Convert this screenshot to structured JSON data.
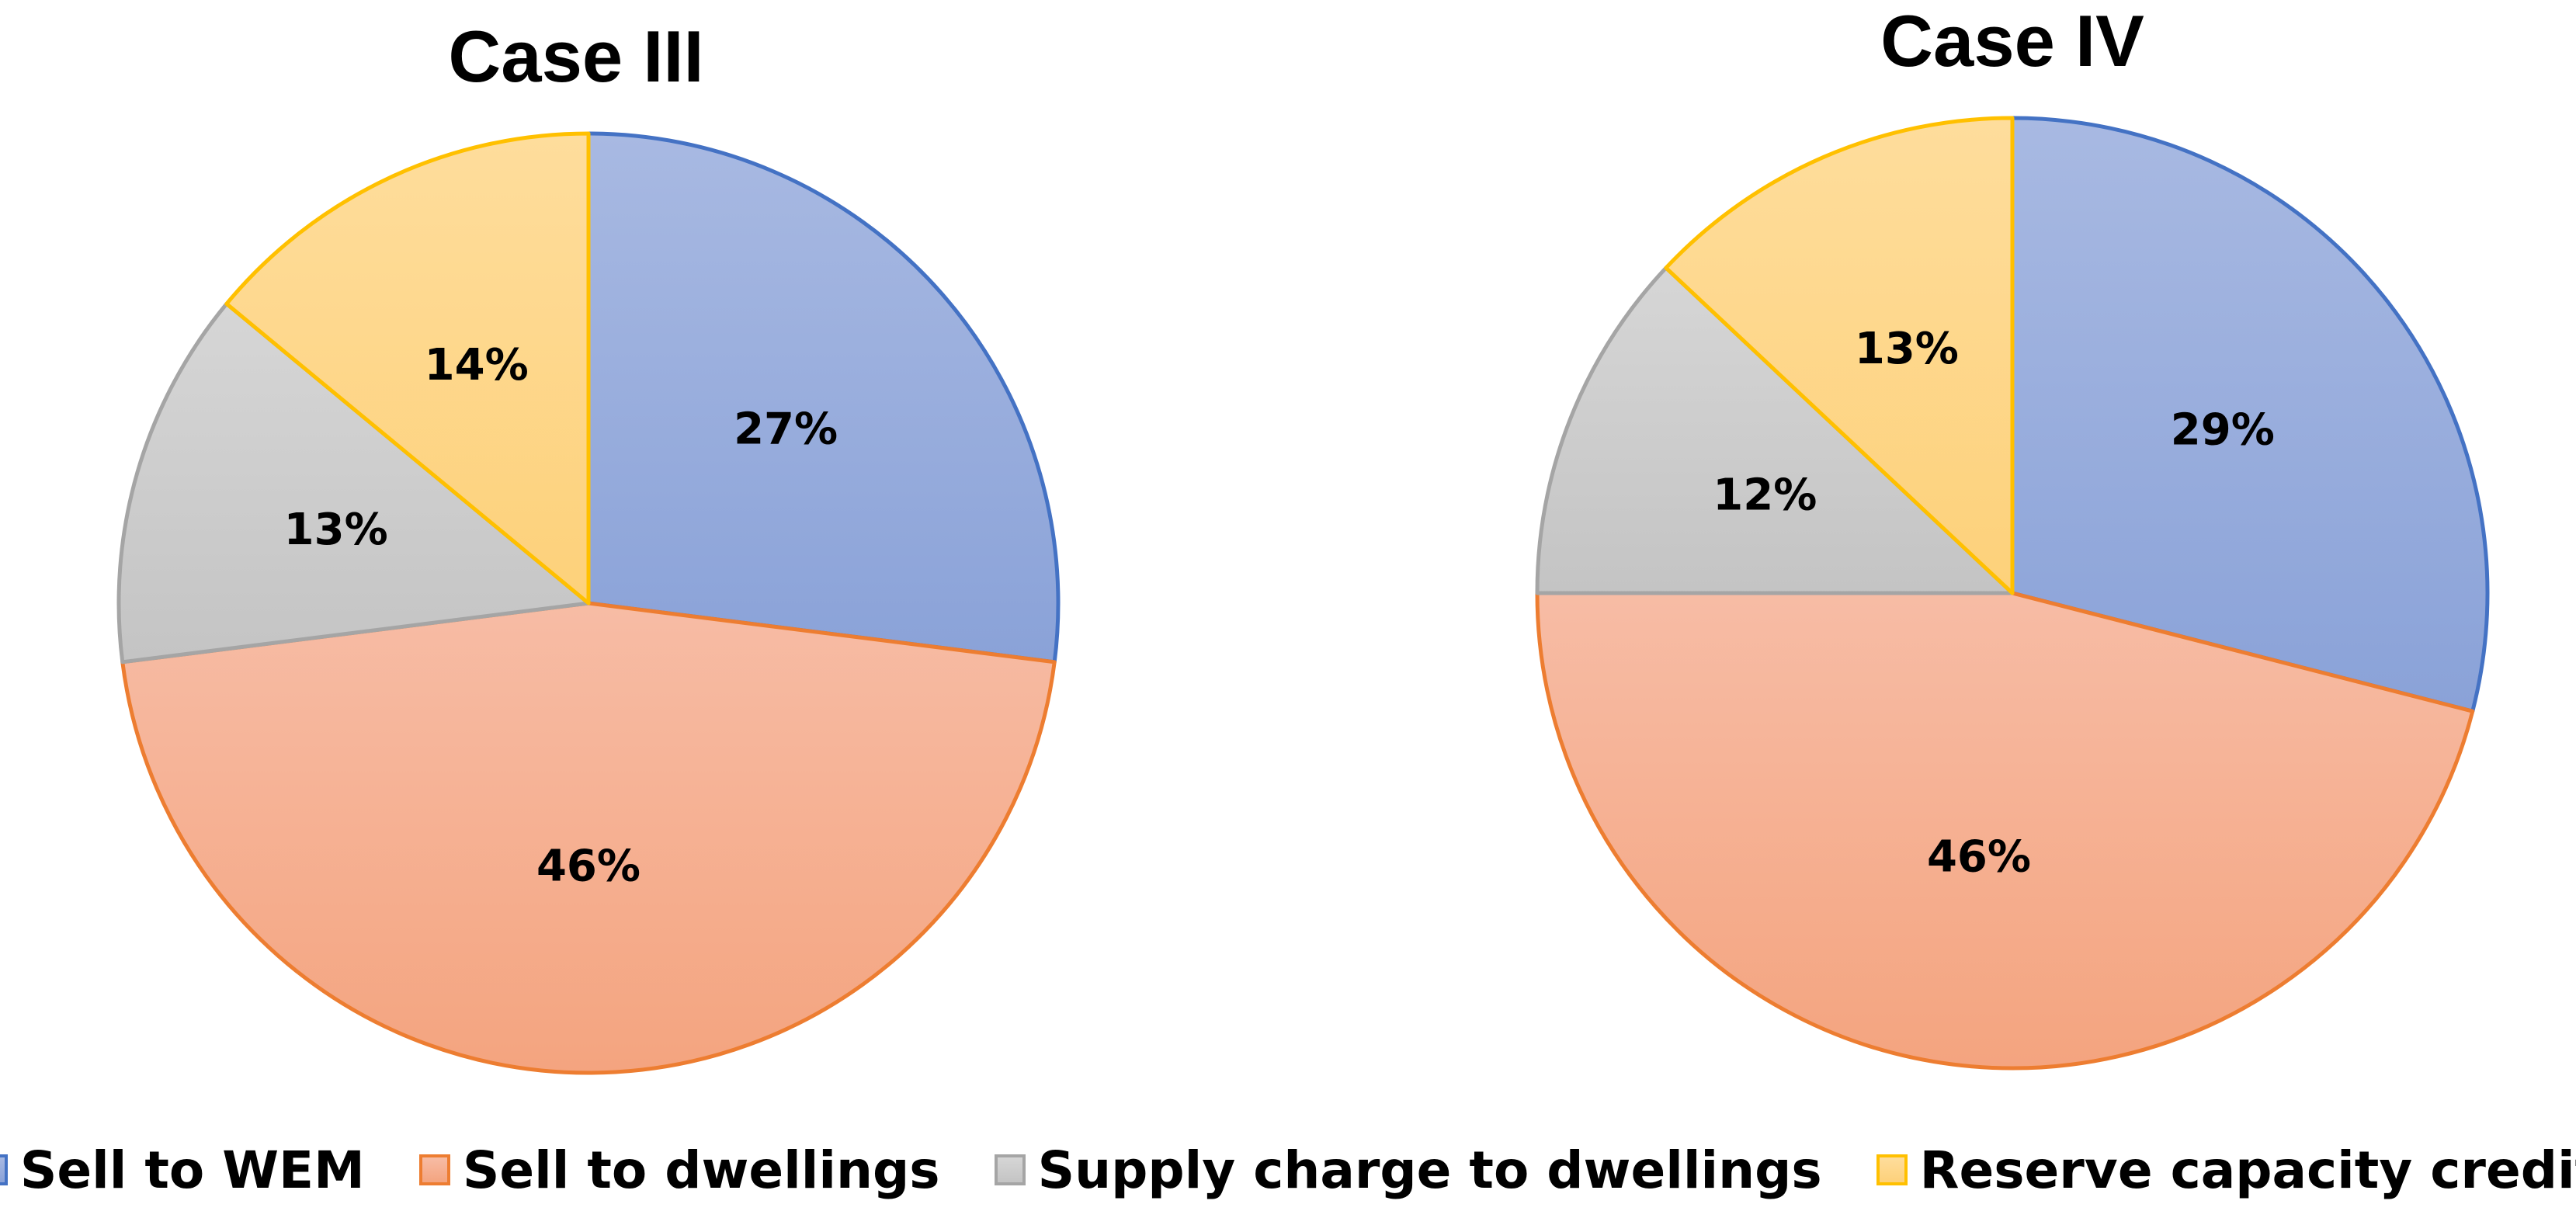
{
  "chart_data": [
    {
      "type": "pie",
      "title": "Case III",
      "start_angle_deg": 0,
      "direction": "clockwise",
      "slices": [
        {
          "category": "Sell to WEM",
          "value": 27,
          "label": "27%"
        },
        {
          "category": "Sell to dwellings",
          "value": 46,
          "label": "46%"
        },
        {
          "category": "Supply charge to dwellings",
          "value": 13,
          "label": "13%"
        },
        {
          "category": "Reserve capacity credit",
          "value": 14,
          "label": "14%"
        }
      ]
    },
    {
      "type": "pie",
      "title": "Case IV",
      "start_angle_deg": 0,
      "direction": "clockwise",
      "slices": [
        {
          "category": "Sell to WEM",
          "value": 29,
          "label": "29%"
        },
        {
          "category": "Sell to dwellings",
          "value": 46,
          "label": "46%"
        },
        {
          "category": "Supply charge to dwellings",
          "value": 12,
          "label": "12%"
        },
        {
          "category": "Reserve capacity credit",
          "value": 13,
          "label": "13%"
        }
      ]
    }
  ],
  "legend": {
    "position": "bottom",
    "items": [
      {
        "label": "Sell to WEM",
        "fill_top": "#a8b9e2",
        "fill_bottom": "#8aa2d8",
        "stroke": "#4472c4"
      },
      {
        "label": "Sell to dwellings",
        "fill_top": "#f7bca5",
        "fill_bottom": "#f4a47f",
        "stroke": "#ed7d31"
      },
      {
        "label": "Supply charge to dwellings",
        "fill_top": "#d6d6d6",
        "fill_bottom": "#c4c4c4",
        "stroke": "#a5a5a5"
      },
      {
        "label": "Reserve capacity credit",
        "fill_top": "#fedd9c",
        "fill_bottom": "#fdd17a",
        "stroke": "#ffc000"
      }
    ]
  }
}
